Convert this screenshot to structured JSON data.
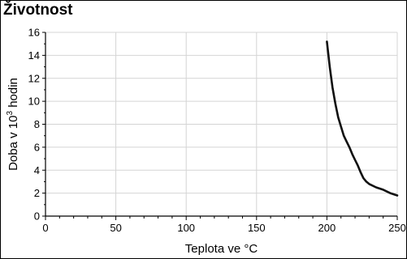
{
  "chart_data": {
    "type": "line",
    "title": "Životnost",
    "xlabel": "Teplota ve °C",
    "ylabel": {
      "prefix": "Doba v 10",
      "sup": "3",
      "suffix": " hodin"
    },
    "xlim": [
      0,
      250
    ],
    "ylim": [
      0,
      16
    ],
    "xticks": [
      0,
      50,
      100,
      150,
      200,
      250
    ],
    "yticks": [
      0,
      2,
      4,
      6,
      8,
      10,
      12,
      14,
      16
    ],
    "grid": true,
    "series": [
      {
        "color": "#111111",
        "x": [
          200,
          202,
          204,
          206,
          208,
          210,
          212,
          214,
          216,
          218,
          220,
          222,
          224,
          226,
          228,
          230,
          235,
          240,
          245,
          250
        ],
        "y": [
          15.2,
          13.0,
          11.2,
          9.8,
          8.6,
          7.8,
          7.0,
          6.5,
          6.0,
          5.4,
          4.9,
          4.4,
          3.8,
          3.3,
          3.0,
          2.8,
          2.5,
          2.3,
          2.0,
          1.8
        ]
      }
    ]
  }
}
